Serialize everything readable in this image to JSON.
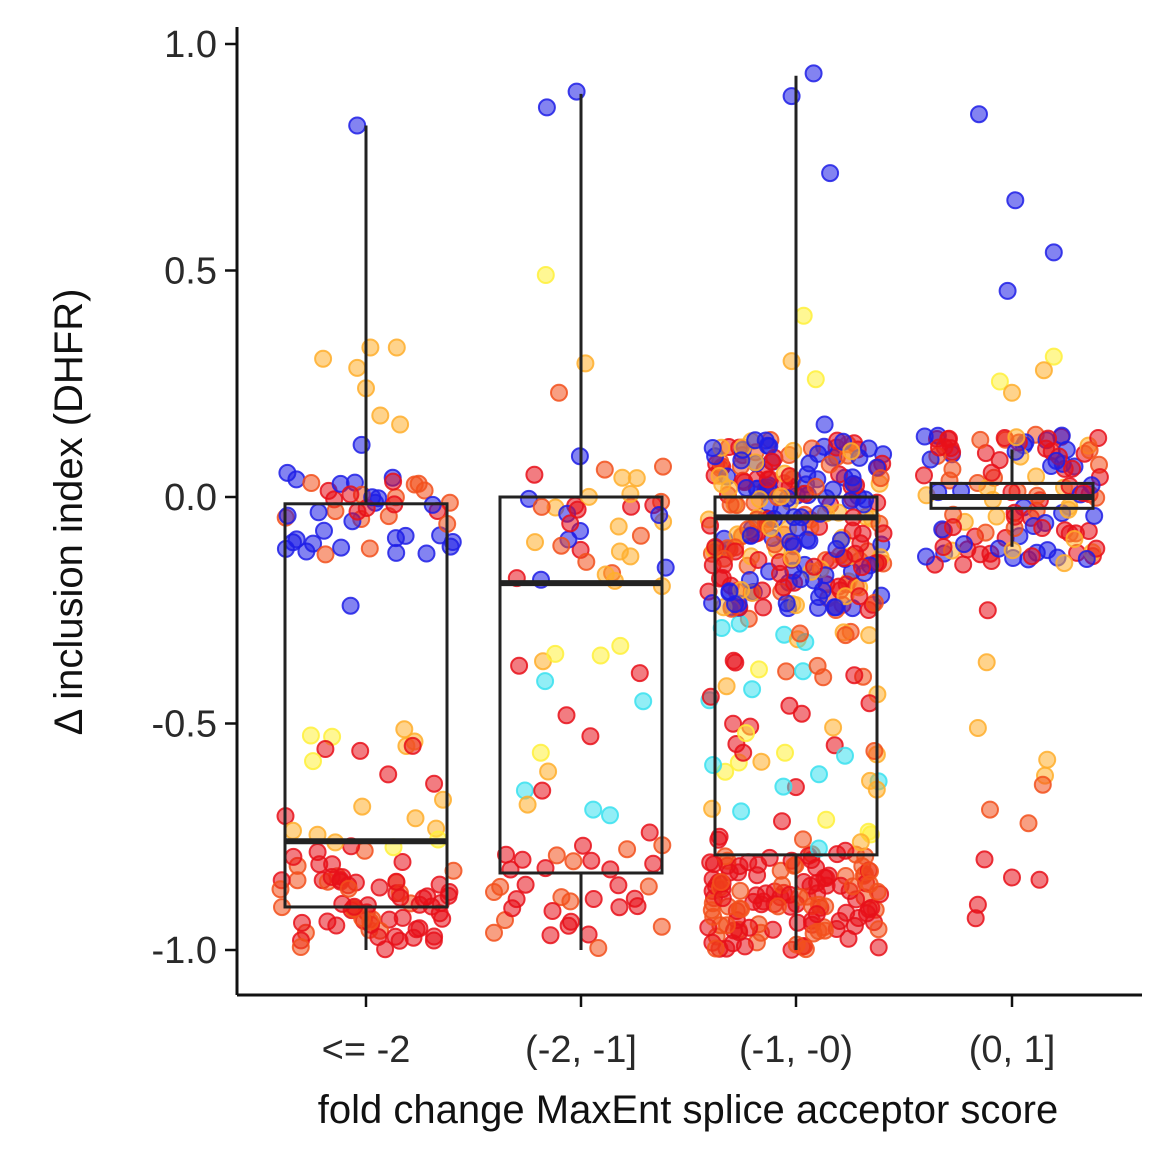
{
  "chart_data": {
    "type": "boxplot-jitter",
    "xlabel": "fold change MaxEnt splice acceptor score",
    "ylabel": "Δ inclusion index (DHFR)",
    "ylim": [
      -1.1,
      1.03
    ],
    "yticks": [
      "1.0",
      "0.5",
      "0.0",
      "-0.5",
      "-1.0"
    ],
    "ytick_values": [
      1.0,
      0.5,
      0.0,
      -0.5,
      -1.0
    ],
    "categories": [
      "<= -2",
      "(-2, -1]",
      "(-1, -0)",
      "(0, 1]"
    ],
    "grid": false,
    "legend": "none",
    "colors": {
      "blue": "#1e1ee6",
      "cyan": "#39e0ef",
      "yellow": "#fff03a",
      "orange": "#ffae2b",
      "redorange": "#f2501c",
      "red": "#e8101a",
      "box": "#222222"
    },
    "boxes": [
      {
        "category": "<= -2",
        "q1": -0.905,
        "median": -0.76,
        "q3": -0.015,
        "whisker_low": -1.0,
        "whisker_high": 0.82
      },
      {
        "category": "(-2, -1]",
        "q1": -0.83,
        "median": -0.19,
        "q3": 0.0,
        "whisker_low": -1.0,
        "whisker_high": 0.89
      },
      {
        "category": "(-1, -0)",
        "q1": -0.79,
        "median": -0.045,
        "q3": 0.0,
        "whisker_low": -1.0,
        "whisker_high": 0.93
      },
      {
        "category": "(0, 1]",
        "q1": -0.025,
        "median": 0.0,
        "q3": 0.03,
        "whisker_low": -0.11,
        "whisker_high": 0.105
      }
    ],
    "outlier_points": [
      {
        "category": 0,
        "offset": -0.08,
        "y": 0.82,
        "color": "blue"
      },
      {
        "category": 0,
        "offset": -0.04,
        "y": 0.115,
        "color": "blue"
      },
      {
        "category": 0,
        "offset": -0.14,
        "y": -0.24,
        "color": "blue"
      },
      {
        "category": 0,
        "offset": -0.39,
        "y": 0.305,
        "color": "orange"
      },
      {
        "category": 0,
        "offset": 0.04,
        "y": 0.33,
        "color": "orange"
      },
      {
        "category": 0,
        "offset": 0.28,
        "y": 0.33,
        "color": "orange"
      },
      {
        "category": 0,
        "offset": -0.08,
        "y": 0.285,
        "color": "orange"
      },
      {
        "category": 0,
        "offset": 0.0,
        "y": 0.24,
        "color": "orange"
      },
      {
        "category": 0,
        "offset": 0.13,
        "y": 0.18,
        "color": "orange"
      },
      {
        "category": 0,
        "offset": 0.31,
        "y": 0.16,
        "color": "orange"
      },
      {
        "category": 1,
        "offset": -0.31,
        "y": 0.86,
        "color": "blue"
      },
      {
        "category": 1,
        "offset": -0.04,
        "y": 0.895,
        "color": "blue"
      },
      {
        "category": 1,
        "offset": -0.32,
        "y": 0.49,
        "color": "yellow"
      },
      {
        "category": 1,
        "offset": 0.04,
        "y": 0.295,
        "color": "orange"
      },
      {
        "category": 1,
        "offset": -0.2,
        "y": 0.23,
        "color": "redorange"
      },
      {
        "category": 1,
        "offset": -0.01,
        "y": 0.09,
        "color": "blue"
      },
      {
        "category": 2,
        "offset": -0.04,
        "y": 0.885,
        "color": "blue"
      },
      {
        "category": 2,
        "offset": 0.16,
        "y": 0.935,
        "color": "blue"
      },
      {
        "category": 2,
        "offset": 0.31,
        "y": 0.715,
        "color": "blue"
      },
      {
        "category": 2,
        "offset": 0.07,
        "y": 0.4,
        "color": "yellow"
      },
      {
        "category": 2,
        "offset": -0.04,
        "y": 0.3,
        "color": "orange"
      },
      {
        "category": 2,
        "offset": 0.18,
        "y": 0.26,
        "color": "yellow"
      },
      {
        "category": 2,
        "offset": 0.26,
        "y": 0.16,
        "color": "blue"
      },
      {
        "category": 3,
        "offset": -0.3,
        "y": 0.845,
        "color": "blue"
      },
      {
        "category": 3,
        "offset": 0.03,
        "y": 0.655,
        "color": "blue"
      },
      {
        "category": 3,
        "offset": 0.38,
        "y": 0.54,
        "color": "blue"
      },
      {
        "category": 3,
        "offset": -0.04,
        "y": 0.455,
        "color": "blue"
      },
      {
        "category": 3,
        "offset": 0.38,
        "y": 0.31,
        "color": "yellow"
      },
      {
        "category": 3,
        "offset": 0.29,
        "y": 0.28,
        "color": "orange"
      },
      {
        "category": 3,
        "offset": -0.11,
        "y": 0.255,
        "color": "yellow"
      },
      {
        "category": 3,
        "offset": 0.0,
        "y": 0.23,
        "color": "orange"
      },
      {
        "category": 3,
        "offset": -0.23,
        "y": -0.365,
        "color": "orange"
      },
      {
        "category": 3,
        "offset": -0.31,
        "y": -0.51,
        "color": "orange"
      },
      {
        "category": 3,
        "offset": 0.32,
        "y": -0.58,
        "color": "orange"
      },
      {
        "category": 3,
        "offset": 0.3,
        "y": -0.615,
        "color": "orange"
      },
      {
        "category": 3,
        "offset": 0.28,
        "y": -0.635,
        "color": "redorange"
      },
      {
        "category": 3,
        "offset": -0.2,
        "y": -0.69,
        "color": "redorange"
      },
      {
        "category": 3,
        "offset": 0.15,
        "y": -0.72,
        "color": "redorange"
      },
      {
        "category": 3,
        "offset": -0.25,
        "y": -0.8,
        "color": "red"
      },
      {
        "category": 3,
        "offset": 0.0,
        "y": -0.84,
        "color": "red"
      },
      {
        "category": 3,
        "offset": 0.25,
        "y": -0.845,
        "color": "red"
      },
      {
        "category": 3,
        "offset": -0.31,
        "y": -0.9,
        "color": "red"
      },
      {
        "category": 3,
        "offset": -0.33,
        "y": -0.93,
        "color": "red"
      },
      {
        "category": 3,
        "offset": -0.22,
        "y": -0.25,
        "color": "red"
      }
    ],
    "cluster_points": [
      {
        "category": 0,
        "y_from": -1.0,
        "y_to": -0.78,
        "count": 70,
        "colors": [
          "red",
          "red",
          "red",
          "redorange"
        ]
      },
      {
        "category": 0,
        "y_from": -0.78,
        "y_to": -0.5,
        "count": 22,
        "colors": [
          "orange",
          "orange",
          "yellow",
          "red"
        ]
      },
      {
        "category": 0,
        "y_from": -0.13,
        "y_to": 0.07,
        "count": 48,
        "colors": [
          "blue",
          "blue",
          "red",
          "redorange"
        ]
      },
      {
        "category": 1,
        "y_from": -1.0,
        "y_to": -0.76,
        "count": 34,
        "colors": [
          "red",
          "red",
          "redorange"
        ]
      },
      {
        "category": 1,
        "y_from": -0.75,
        "y_to": -0.3,
        "count": 18,
        "colors": [
          "orange",
          "yellow",
          "red",
          "cyan"
        ]
      },
      {
        "category": 1,
        "y_from": -0.2,
        "y_to": 0.07,
        "count": 36,
        "colors": [
          "red",
          "redorange",
          "blue",
          "orange"
        ]
      },
      {
        "category": 2,
        "y_from": -1.0,
        "y_to": -0.78,
        "count": 130,
        "colors": [
          "red",
          "red",
          "red",
          "redorange",
          "redorange"
        ]
      },
      {
        "category": 2,
        "y_from": -0.78,
        "y_to": -0.25,
        "count": 60,
        "colors": [
          "red",
          "redorange",
          "orange",
          "yellow",
          "cyan"
        ]
      },
      {
        "category": 2,
        "y_from": -0.25,
        "y_to": 0.13,
        "count": 260,
        "colors": [
          "red",
          "red",
          "redorange",
          "blue",
          "blue",
          "orange"
        ]
      },
      {
        "category": 3,
        "y_from": -0.15,
        "y_to": 0.14,
        "count": 120,
        "colors": [
          "red",
          "red",
          "redorange",
          "blue",
          "orange"
        ]
      }
    ]
  }
}
